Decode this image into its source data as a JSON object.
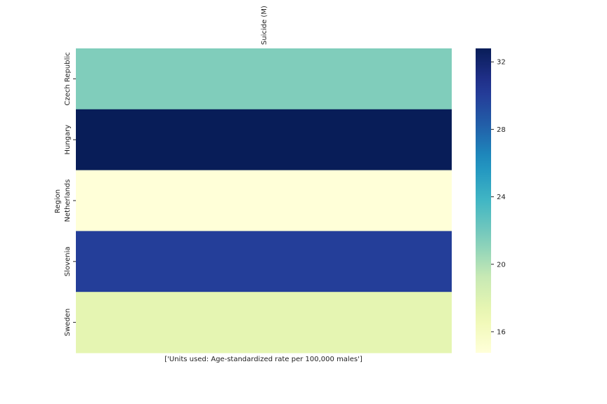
{
  "chart_data": {
    "type": "heatmap",
    "title": "",
    "xlabel": "['Units used: Age-standardized rate per 100,000 males']",
    "ylabel": "Region",
    "x_categories": [
      "Suicide (M)"
    ],
    "y_categories": [
      "Czech Republic",
      "Hungary",
      "Netherlands",
      "Slovenia",
      "Sweden"
    ],
    "values": [
      [
        21.5
      ],
      [
        32.8
      ],
      [
        14.8
      ],
      [
        30.0
      ],
      [
        17.5
      ]
    ],
    "colormap": "YlGnBu",
    "colorbar": {
      "range": [
        14.75,
        32.8
      ],
      "ticks": [
        16,
        20,
        24,
        28,
        32
      ],
      "tick_labels": [
        "16",
        "20",
        "24",
        "28",
        "32"
      ]
    }
  }
}
